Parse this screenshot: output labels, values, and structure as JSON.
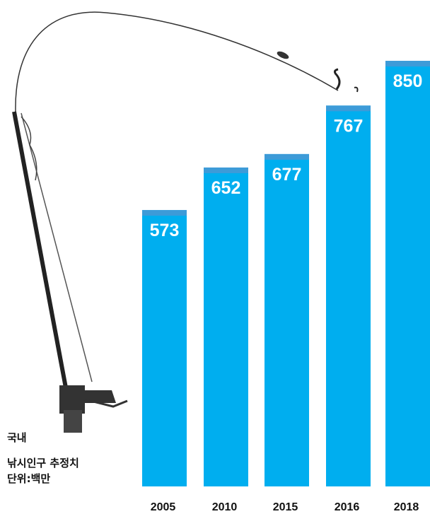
{
  "chart_data": {
    "type": "bar",
    "note_lines": [
      "국내",
      "낚시인구 추정치",
      "단위:백만"
    ],
    "categories": [
      "2005",
      "2010",
      "2015",
      "2016",
      "2018"
    ],
    "values": [
      573,
      652,
      677,
      767,
      850
    ],
    "color": "#00aeef",
    "ylim": [
      60,
      900
    ]
  }
}
